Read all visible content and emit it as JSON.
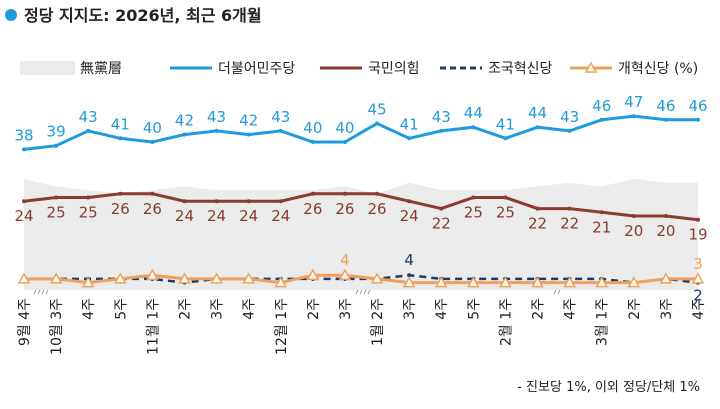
{
  "chart_data": {
    "type": "line",
    "title": "정당 지지도: 2026년, 최근 6개월",
    "footnote": "- 진보당 1%, 이외 정당/단체 1%",
    "categories": [
      "9월 4주",
      "10월 3주",
      "4주",
      "5주",
      "11월 1주",
      "2주",
      "3주",
      "4주",
      "12월 1주",
      "2주",
      "3주",
      "1월 2주",
      "3주",
      "4주",
      "5주",
      "2월 1주",
      "2주",
      "4주",
      "3월 1주",
      "2주",
      "3주",
      "4주"
    ],
    "ylim": [
      0,
      55
    ],
    "series": [
      {
        "name": "無黨層",
        "color": "#ebebeb",
        "area": true,
        "values": [
          30,
          28,
          27,
          26,
          27,
          28,
          27,
          27,
          27,
          27,
          28,
          26,
          29,
          27,
          27,
          27,
          28,
          29,
          28,
          30,
          29,
          29
        ]
      },
      {
        "name": "더불어민주당",
        "color": "#1e9be0",
        "values": [
          38,
          39,
          43,
          41,
          40,
          42,
          43,
          42,
          43,
          40,
          40,
          45,
          41,
          43,
          44,
          41,
          44,
          43,
          46,
          47,
          46,
          46
        ]
      },
      {
        "name": "국민의힘",
        "color": "#8b3a2e",
        "values": [
          24,
          25,
          25,
          26,
          26,
          24,
          24,
          24,
          24,
          26,
          26,
          26,
          24,
          22,
          25,
          25,
          22,
          22,
          21,
          20,
          20,
          19
        ]
      },
      {
        "name": "조국혁신당",
        "color": "#1f3a6e",
        "dashed": true,
        "values": [
          3,
          3,
          3,
          3,
          3,
          2,
          3,
          3,
          3,
          3,
          3,
          3,
          4,
          3,
          3,
          3,
          3,
          3,
          3,
          2,
          3,
          2
        ],
        "value_labels": [
          null,
          null,
          null,
          null,
          null,
          null,
          null,
          null,
          null,
          null,
          null,
          null,
          "4",
          null,
          null,
          null,
          null,
          null,
          null,
          null,
          null,
          "2"
        ]
      },
      {
        "name": "개혁신당 (%)",
        "color": "#f0a05a",
        "marker": "triangle",
        "values": [
          3,
          3,
          2,
          3,
          4,
          3,
          3,
          3,
          2,
          4,
          4,
          3,
          2,
          2,
          2,
          2,
          2,
          2,
          2,
          2,
          3,
          3
        ],
        "value_labels": [
          null,
          null,
          null,
          null,
          null,
          null,
          null,
          null,
          null,
          null,
          "4",
          null,
          null,
          null,
          null,
          null,
          null,
          null,
          null,
          null,
          null,
          "3"
        ]
      }
    ]
  }
}
